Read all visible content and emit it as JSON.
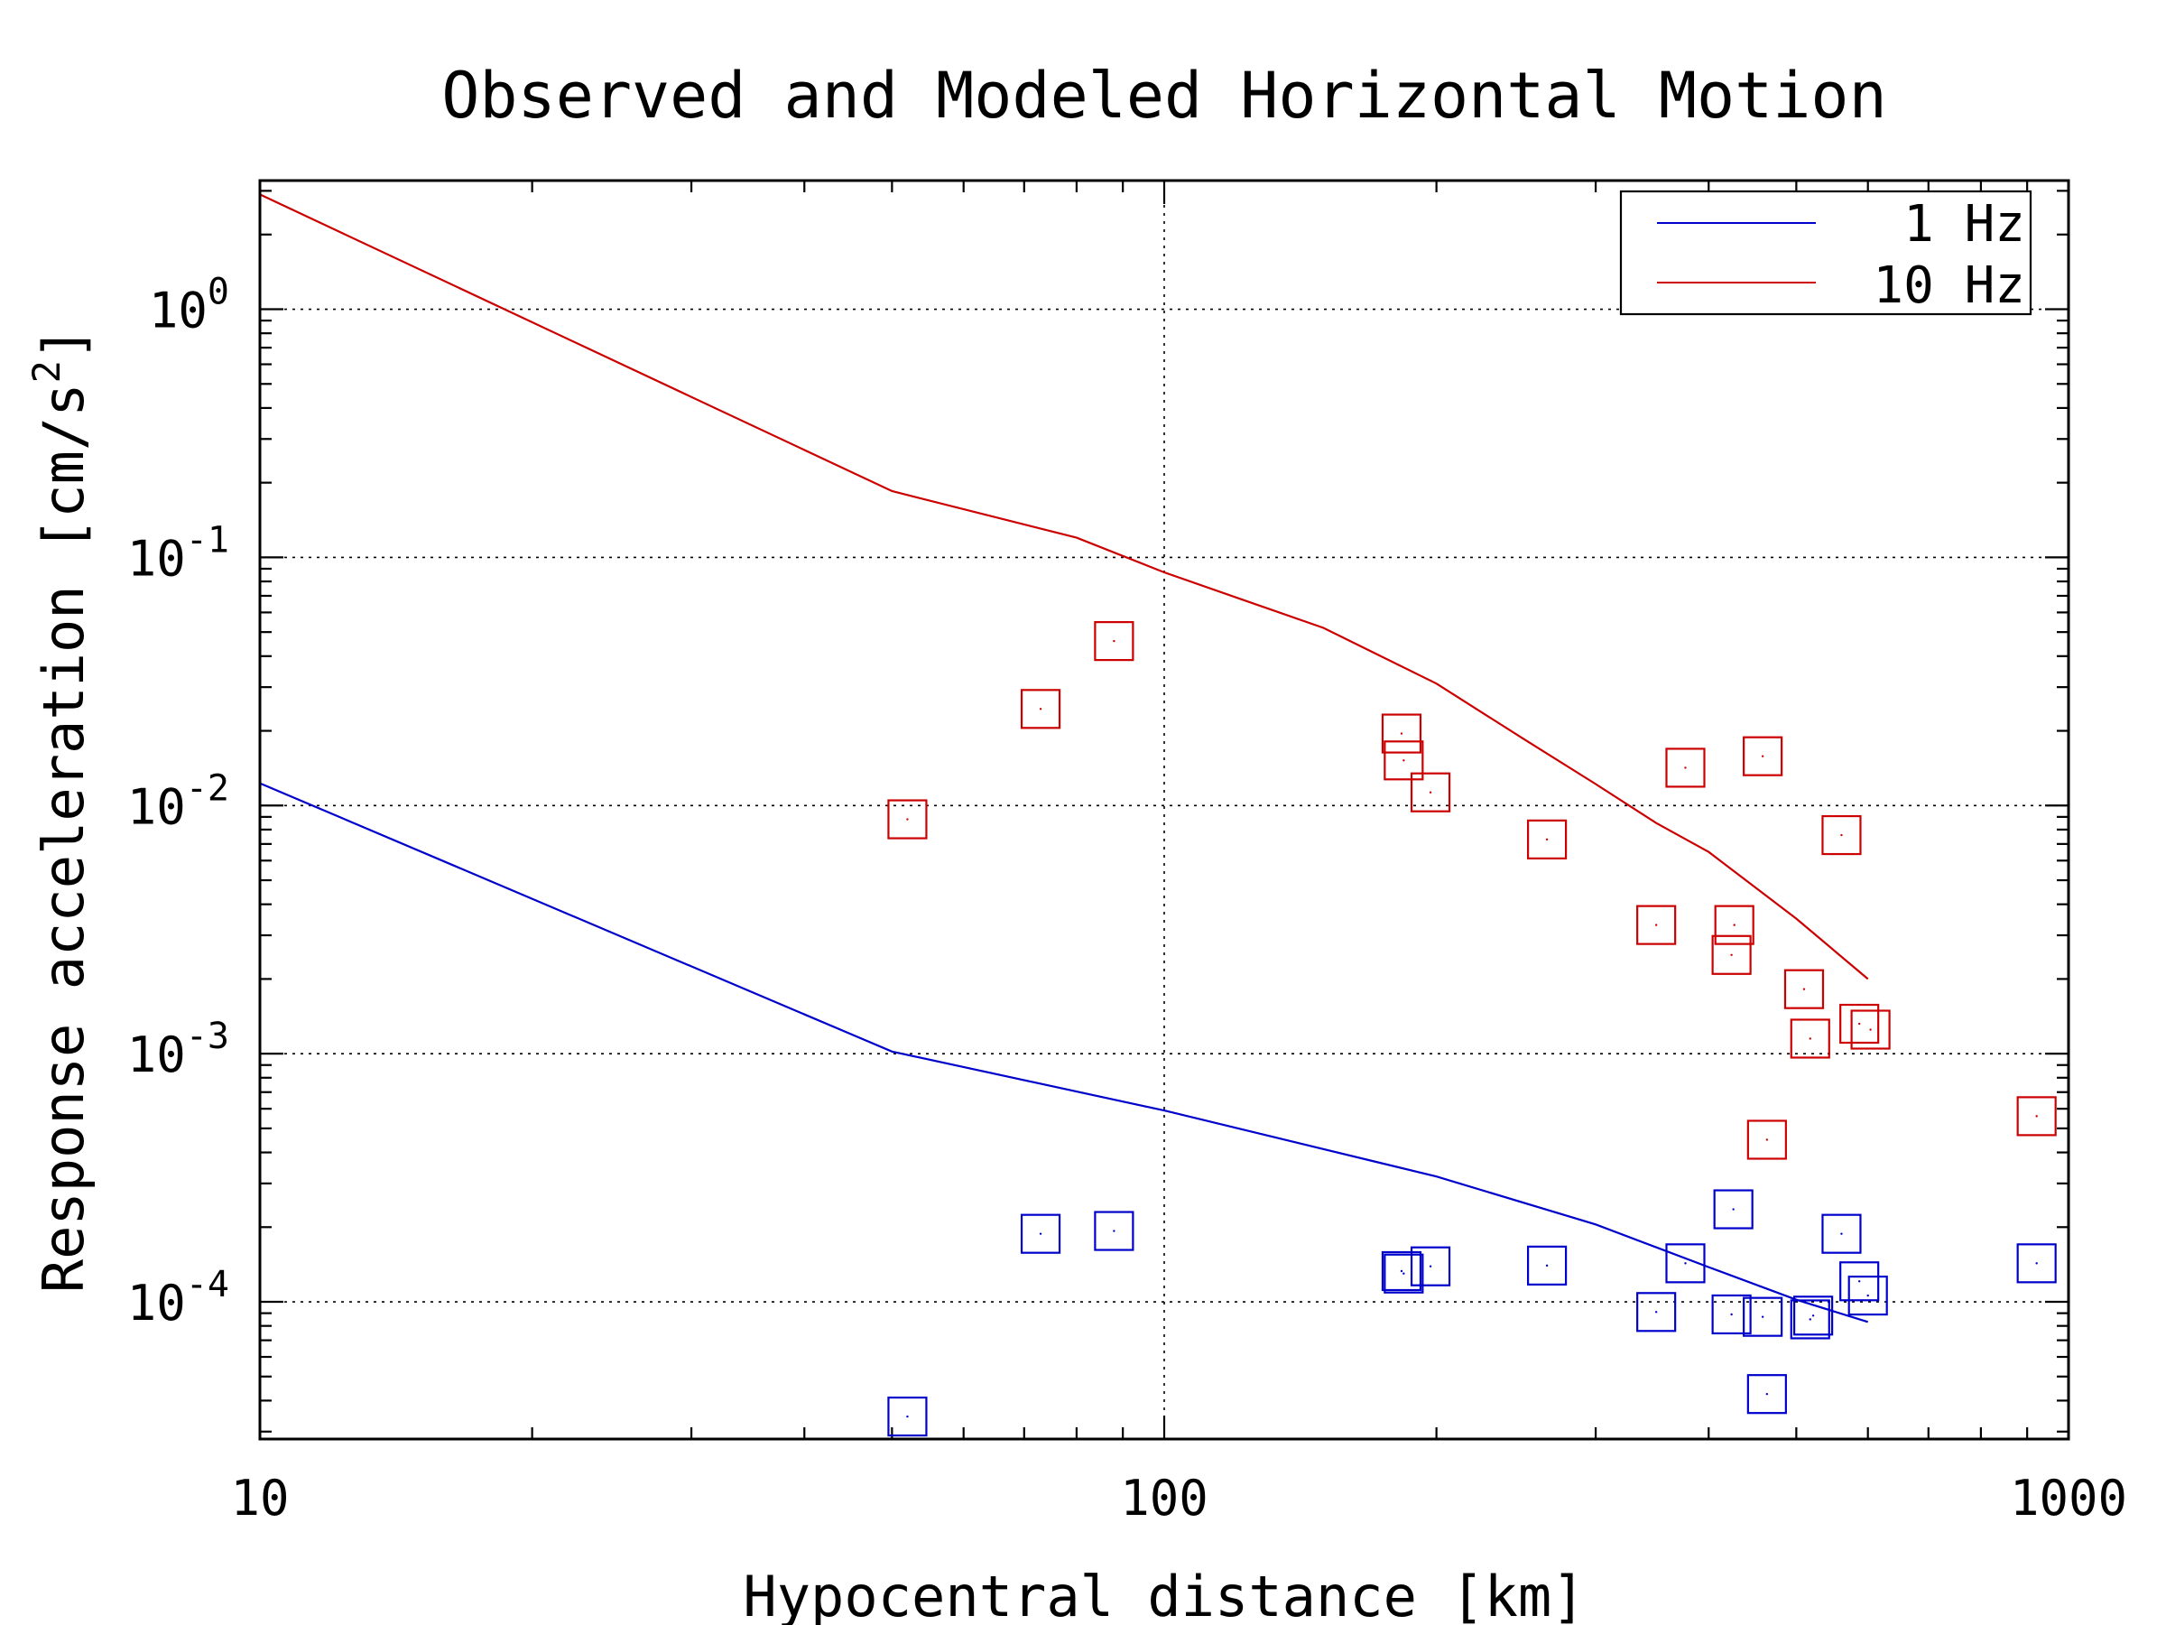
{
  "chart_data": {
    "type": "scatter",
    "title": "Observed and Modeled Horizontal Motion",
    "xlabel": "Hypocentral distance [km]",
    "ylabel_text": "Response acceleration [cm/s",
    "ylabel_sup": "2",
    "ylabel_close": "]",
    "x_scale": "log",
    "y_scale": "log",
    "xlim": [
      10,
      1000
    ],
    "ylim": [
      2.8e-05,
      3.3
    ],
    "grid": true,
    "legend_position": "top-right",
    "x_ticks": [
      {
        "value": 10,
        "label": "10"
      },
      {
        "value": 100,
        "label": "100"
      },
      {
        "value": 1000,
        "label": "1000"
      }
    ],
    "y_ticks": [
      {
        "value": 1,
        "base": "10",
        "exp": "0"
      },
      {
        "value": 0.1,
        "base": "10",
        "exp": "-1"
      },
      {
        "value": 0.01,
        "base": "10",
        "exp": "-2"
      },
      {
        "value": 0.001,
        "base": "10",
        "exp": "-3"
      },
      {
        "value": 0.0001,
        "base": "10",
        "exp": "-4"
      }
    ],
    "series": [
      {
        "name": "1 Hz",
        "color": "#0000cc",
        "model_line": [
          [
            10,
            0.0123
          ],
          [
            50,
            0.00102
          ],
          [
            100,
            0.00059
          ],
          [
            200,
            0.00032
          ],
          [
            300,
            0.000205
          ],
          [
            400,
            0.000138
          ],
          [
            500,
            0.000102
          ],
          [
            600,
            8.3e-05
          ]
        ],
        "observed": [
          [
            52,
            3.45e-05
          ],
          [
            73,
            0.000188
          ],
          [
            88,
            0.000193
          ],
          [
            183,
            0.000133
          ],
          [
            184,
            0.00013
          ],
          [
            197,
            0.000139
          ],
          [
            265,
            0.00014
          ],
          [
            350,
            9.1e-05
          ],
          [
            377,
            0.000143
          ],
          [
            426,
            0.000236
          ],
          [
            424,
            8.9e-05
          ],
          [
            459,
            8.7e-05
          ],
          [
            464,
            4.25e-05
          ],
          [
            518,
            8.5e-05
          ],
          [
            522,
            8.8e-05
          ],
          [
            561,
            0.000188
          ],
          [
            587,
            0.000121
          ],
          [
            600,
            0.000106
          ],
          [
            922,
            0.000143
          ]
        ]
      },
      {
        "name": "10 Hz",
        "color": "#cc0000",
        "model_line": [
          [
            10,
            2.9
          ],
          [
            50,
            0.185
          ],
          [
            80,
            0.12
          ],
          [
            100,
            0.087
          ],
          [
            150,
            0.052
          ],
          [
            200,
            0.031
          ],
          [
            250,
            0.0185
          ],
          [
            300,
            0.0122
          ],
          [
            350,
            0.0085
          ],
          [
            400,
            0.0065
          ],
          [
            500,
            0.0035
          ],
          [
            600,
            0.002
          ]
        ],
        "observed": [
          [
            52,
            0.0088
          ],
          [
            73,
            0.0245
          ],
          [
            88,
            0.046
          ],
          [
            183,
            0.0195
          ],
          [
            184,
            0.0152
          ],
          [
            197,
            0.0113
          ],
          [
            265,
            0.0073
          ],
          [
            350,
            0.0033
          ],
          [
            377,
            0.0142
          ],
          [
            427,
            0.0033
          ],
          [
            424,
            0.0025
          ],
          [
            459,
            0.0158
          ],
          [
            464,
            0.00045
          ],
          [
            510,
            0.00182
          ],
          [
            518,
            0.00115
          ],
          [
            561,
            0.0076
          ],
          [
            587,
            0.00132
          ],
          [
            604,
            0.00125
          ],
          [
            922,
            0.00056
          ]
        ]
      }
    ]
  }
}
